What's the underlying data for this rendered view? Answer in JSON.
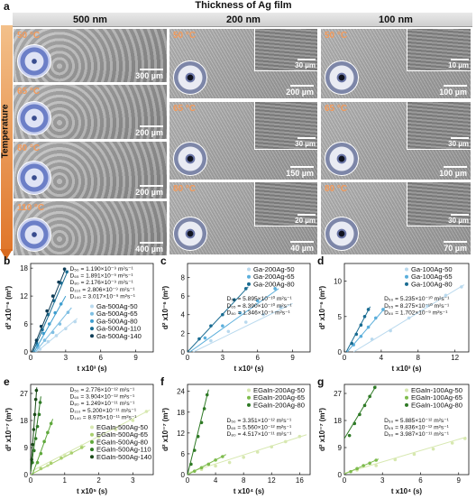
{
  "figure": {
    "panel_a_letter": "a",
    "super_title": "Thickness of Ag film",
    "columns": [
      "500 nm",
      "200 nm",
      "100 nm"
    ],
    "temperature_label": "Temperature",
    "tiles": [
      {
        "col": 0,
        "row": 0,
        "temp": "50 °C",
        "scale": "300 µm",
        "inset": false,
        "droplet": true
      },
      {
        "col": 0,
        "row": 1,
        "temp": "65 °C",
        "scale": "200 µm",
        "inset": false,
        "droplet": true
      },
      {
        "col": 0,
        "row": 2,
        "temp": "80 °C",
        "scale": "200 µm",
        "inset": false,
        "droplet": true
      },
      {
        "col": 0,
        "row": 3,
        "temp": "110 °C",
        "scale": "400 µm",
        "inset": false,
        "droplet": true
      },
      {
        "col": 1,
        "row": 0,
        "temp": "50 °C",
        "scale": "200 µm",
        "inset": "30 µm",
        "droplet": true
      },
      {
        "col": 1,
        "row": 1,
        "temp": "65 °C",
        "scale": "150 µm",
        "inset": "30 µm",
        "droplet": true
      },
      {
        "col": 1,
        "row": 2,
        "temp": "80 °C",
        "scale": "40 µm",
        "inset": "20 µm",
        "droplet": true
      },
      {
        "col": 2,
        "row": 0,
        "temp": "50 °C",
        "scale": "100 µm",
        "inset": "10 µm",
        "droplet": true
      },
      {
        "col": 2,
        "row": 1,
        "temp": "65 °C",
        "scale": "100 µm",
        "inset": "30 µm",
        "droplet": true
      },
      {
        "col": 2,
        "row": 2,
        "temp": "80 °C",
        "scale": "70 µm",
        "inset": "30 µm",
        "droplet": true
      }
    ]
  },
  "chart_data": [
    {
      "panel": "b",
      "type": "scatter",
      "xlabel": "t x10³ (s)",
      "ylabel": "d² x10⁻⁶ (m²)",
      "xlim": [
        0,
        10.5
      ],
      "ylim": [
        0,
        19
      ],
      "xticks": [
        0,
        3,
        6,
        9
      ],
      "yticks": [
        0,
        6,
        12,
        18
      ],
      "equations": [
        "D₅₀ = 1.190×10⁻⁹ m²s⁻¹",
        "D₆₅ = 1.891×10⁻⁹ m²s⁻¹",
        "D₈₀ = 2.176×10⁻⁹ m²s⁻¹",
        "D₁₁₀ = 2.806×10⁻⁹ m²s⁻¹",
        "D₁₄₀ = 3.017×10⁻⁹ m²s⁻¹"
      ],
      "series": [
        {
          "name": "Ga-500Ag-50",
          "color": "#b9d9ee",
          "points": [
            [
              0.8,
              0.6
            ],
            [
              1.5,
              2.2
            ],
            [
              2.2,
              3.5
            ],
            [
              3,
              5
            ],
            [
              3.8,
              6.5
            ]
          ],
          "line": [
            [
              0.5,
              0
            ],
            [
              4,
              7.2
            ]
          ]
        },
        {
          "name": "Ga-500Ag-65",
          "color": "#7fbfe3",
          "points": [
            [
              0.6,
              1
            ],
            [
              1.2,
              2.5
            ],
            [
              1.9,
              4.2
            ],
            [
              2.5,
              6
            ],
            [
              3.2,
              8.5
            ]
          ],
          "line": [
            [
              0.4,
              0
            ],
            [
              3.5,
              9.5
            ]
          ]
        },
        {
          "name": "Ga-500Ag-80",
          "color": "#3e9ecf",
          "points": [
            [
              0.6,
              1.5
            ],
            [
              1.1,
              4
            ],
            [
              1.6,
              6
            ],
            [
              2.1,
              8.4
            ],
            [
              2.6,
              10.3
            ]
          ],
          "line": [
            [
              0.3,
              0
            ],
            [
              3,
              12
            ]
          ]
        },
        {
          "name": "Ga-500Ag-110",
          "color": "#1a6c92",
          "points": [
            [
              0.5,
              2
            ],
            [
              1,
              4.8
            ],
            [
              1.5,
              8
            ],
            [
              2,
              11
            ],
            [
              2.6,
              14.8
            ],
            [
              3.1,
              17.2
            ]
          ],
          "line": [
            [
              0.2,
              0
            ],
            [
              3.2,
              17.5
            ]
          ]
        },
        {
          "name": "Ga-500Ag-140",
          "color": "#0e3d57",
          "points": [
            [
              0.5,
              2.5
            ],
            [
              0.9,
              5.5
            ],
            [
              1.4,
              8.8
            ],
            [
              1.9,
              12
            ],
            [
              2.4,
              15
            ],
            [
              2.9,
              17.8
            ]
          ],
          "line": [
            [
              0.1,
              0
            ],
            [
              3,
              18
            ]
          ]
        }
      ]
    },
    {
      "panel": "c",
      "type": "scatter",
      "xlabel": "t x10³ (s)",
      "ylabel": "d² x10⁻⁶ (m²)",
      "xlim": [
        0,
        10.5
      ],
      "ylim": [
        0,
        9.5
      ],
      "xticks": [
        0,
        3,
        6,
        9
      ],
      "yticks": [
        0,
        2,
        4,
        6,
        8
      ],
      "equations": [
        "D₅₀ = 5.895×10⁻¹⁰ m²s⁻¹",
        "D₆₅ = 8.390×10⁻¹⁰ m²s⁻¹",
        "D₈₀ = 1.346×10⁻⁹ m²s⁻¹"
      ],
      "series": [
        {
          "name": "Ga-200Ag-50",
          "color": "#b9d9ee",
          "points": [
            [
              2,
              1.2
            ],
            [
              3.5,
              2.2
            ],
            [
              5,
              3.2
            ],
            [
              6.5,
              4
            ],
            [
              8,
              4.8
            ]
          ],
          "line": [
            [
              0.5,
              0
            ],
            [
              9,
              5.2
            ]
          ]
        },
        {
          "name": "Ga-200Ag-65",
          "color": "#5aaedb",
          "points": [
            [
              1.5,
              1.5
            ],
            [
              3,
              2.8
            ],
            [
              4.5,
              4.2
            ],
            [
              6,
              5.5
            ],
            [
              7.5,
              6.8
            ]
          ],
          "line": [
            [
              0.2,
              0
            ],
            [
              7.8,
              6.8
            ]
          ]
        },
        {
          "name": "Ga-200Ag-80",
          "color": "#1a6c92",
          "points": [
            [
              1,
              1.4
            ],
            [
              2,
              2.8
            ],
            [
              3,
              4
            ],
            [
              4,
              5.6
            ],
            [
              5,
              6.8
            ]
          ],
          "line": [
            [
              0,
              0
            ],
            [
              5.2,
              7
            ]
          ]
        }
      ]
    },
    {
      "panel": "d",
      "type": "scatter",
      "xlabel": "t x10³ (s)",
      "ylabel": "d² x10⁻⁶ (m²)",
      "xlim": [
        0,
        13.5
      ],
      "ylim": [
        0,
        12.5
      ],
      "xticks": [
        0,
        4,
        8,
        12
      ],
      "yticks": [
        0,
        5,
        10
      ],
      "equations": [
        "D₅₀ = 5.235×10⁻¹⁰ m²s⁻¹",
        "D₆₅ = 8.275×10⁻¹⁰ m²s⁻¹",
        "D₈₀ = 1.702×10⁻⁹ m²s⁻¹"
      ],
      "series": [
        {
          "name": "Ga-100Ag-50",
          "color": "#b9d9ee",
          "points": [
            [
              3,
              1.8
            ],
            [
              5,
              3
            ],
            [
              7,
              4.8
            ],
            [
              9,
              6.5
            ],
            [
              11,
              8
            ],
            [
              12.7,
              9.2
            ]
          ],
          "line": [
            [
              1,
              0
            ],
            [
              13,
              9.5
            ]
          ]
        },
        {
          "name": "Ga-100Ag-65",
          "color": "#5aaedb",
          "points": [
            [
              1,
              1
            ],
            [
              1.8,
              2.2
            ],
            [
              2.6,
              3.5
            ],
            [
              3.4,
              4.8
            ],
            [
              4.2,
              6
            ]
          ],
          "line": [
            [
              0.3,
              0
            ],
            [
              4.4,
              6.2
            ]
          ]
        },
        {
          "name": "Ga-100Ag-80",
          "color": "#1a6c92",
          "points": [
            [
              0.8,
              1.2
            ],
            [
              1.3,
              2.5
            ],
            [
              1.8,
              3.8
            ],
            [
              2.2,
              5
            ],
            [
              2.6,
              6
            ]
          ],
          "line": [
            [
              0.2,
              0
            ],
            [
              2.8,
              6.4
            ]
          ]
        }
      ]
    },
    {
      "panel": "e",
      "type": "scatter",
      "xlabel": "t x10⁵ (s)",
      "ylabel": "d² x10⁻⁷ (m²)",
      "xlim": [
        0,
        3.6
      ],
      "ylim": [
        0,
        30
      ],
      "xticks": [
        0,
        1,
        2,
        3
      ],
      "yticks": [
        0,
        9,
        18,
        27
      ],
      "equations": [
        "D₅₀ = 2.776×10⁻¹² m²s⁻¹",
        "D₆₅ = 3.904×10⁻¹² m²s⁻¹",
        "D₈₀ = 1.249×10⁻¹¹ m²s⁻¹",
        "D₁₁₀ = 5.200×10⁻¹¹ m²s⁻¹",
        "D₁₄₀ = 8.975×10⁻¹¹ m²s⁻¹"
      ],
      "series": [
        {
          "name": "EGaIn-500Ag-50",
          "color": "#d7e8b0",
          "points": [
            [
              0.5,
              3
            ],
            [
              1,
              6.5
            ],
            [
              1.5,
              9.5
            ],
            [
              2,
              12.5
            ],
            [
              2.5,
              15
            ],
            [
              3,
              18
            ],
            [
              3.4,
              21
            ]
          ],
          "line": [
            [
              0,
              1
            ],
            [
              3.5,
              21.5
            ]
          ]
        },
        {
          "name": "EGaIn-500Ag-65",
          "color": "#a9d06e",
          "points": [
            [
              0.3,
              2
            ],
            [
              0.6,
              3.8
            ],
            [
              0.9,
              5.5
            ],
            [
              1.2,
              7.2
            ],
            [
              1.5,
              9
            ]
          ],
          "line": [
            [
              0,
              0
            ],
            [
              1.6,
              9.5
            ]
          ]
        },
        {
          "name": "EGaIn-500Ag-80",
          "color": "#5fa83c",
          "points": [
            [
              0.2,
              4
            ],
            [
              0.3,
              7
            ],
            [
              0.4,
              11
            ],
            [
              0.5,
              14
            ],
            [
              0.6,
              17
            ]
          ],
          "line": [
            [
              0.05,
              0
            ],
            [
              0.65,
              18.5
            ]
          ]
        },
        {
          "name": "EGaIn-500Ag-110",
          "color": "#2f7a26",
          "points": [
            [
              0.05,
              4
            ],
            [
              0.1,
              8
            ],
            [
              0.15,
              12
            ],
            [
              0.2,
              16
            ],
            [
              0.25,
              20
            ],
            [
              0.28,
              24
            ]
          ],
          "line": [
            [
              0,
              1
            ],
            [
              0.3,
              26
            ]
          ]
        },
        {
          "name": "EGaIn-500Ag-140",
          "color": "#1a4a18",
          "points": [
            [
              0.03,
              5
            ],
            [
              0.06,
              10
            ],
            [
              0.09,
              15
            ],
            [
              0.12,
              20
            ],
            [
              0.15,
              25
            ],
            [
              0.17,
              28
            ]
          ],
          "line": [
            [
              0,
              1
            ],
            [
              0.18,
              29
            ]
          ]
        }
      ]
    },
    {
      "panel": "f",
      "type": "scatter",
      "xlabel": "t x10⁴ (s)",
      "ylabel": "d² x10⁻⁷ (m²)",
      "xlim": [
        0,
        17.5
      ],
      "ylim": [
        0,
        26
      ],
      "xticks": [
        0,
        4,
        8,
        12,
        16
      ],
      "yticks": [
        0,
        6,
        12,
        18,
        24
      ],
      "equations": [
        "D₅₀ = 3.351×10⁻¹² m²s⁻¹",
        "D₆₅ = 5.560×10⁻¹² m²s⁻¹",
        "D₈₀ = 4.517×10⁻¹¹ m²s⁻¹"
      ],
      "series": [
        {
          "name": "EGaIn-200Ag-50",
          "color": "#d7e8b0",
          "points": [
            [
              2,
              1.5
            ],
            [
              4,
              2.5
            ],
            [
              6,
              3.5
            ],
            [
              8,
              5
            ],
            [
              10,
              6.5
            ],
            [
              12,
              8
            ],
            [
              14,
              9.5
            ],
            [
              16,
              11
            ]
          ],
          "line": [
            [
              0,
              0.5
            ],
            [
              17,
              11.5
            ]
          ]
        },
        {
          "name": "EGaIn-200Ag-65",
          "color": "#7dbb4c",
          "points": [
            [
              1,
              1
            ],
            [
              2,
              2
            ],
            [
              3,
              3
            ],
            [
              4,
              4.2
            ],
            [
              5,
              5.2
            ]
          ],
          "line": [
            [
              0,
              0
            ],
            [
              5.5,
              5.8
            ]
          ]
        },
        {
          "name": "EGaIn-200Ag-80",
          "color": "#2f7a26",
          "points": [
            [
              0.5,
              3
            ],
            [
              1,
              7
            ],
            [
              1.5,
              11
            ],
            [
              2,
              15
            ],
            [
              2.4,
              19
            ],
            [
              2.8,
              23
            ]
          ],
          "line": [
            [
              0,
              0
            ],
            [
              3,
              24.5
            ]
          ]
        }
      ]
    },
    {
      "panel": "g",
      "type": "scatter",
      "xlabel": "t x10⁴ (s)",
      "ylabel": "d² x10⁻⁷ (m²)",
      "xlim": [
        0,
        9.8
      ],
      "ylim": [
        0,
        30
      ],
      "xticks": [
        0,
        3,
        6,
        9
      ],
      "yticks": [
        0,
        9,
        18,
        27
      ],
      "equations": [
        "D₅₀ = 5.885×10⁻¹² m²s⁻¹",
        "D₆₅ = 9.836×10⁻¹² m²s⁻¹",
        "D₈₀ = 3.987×10⁻¹¹ m²s⁻¹"
      ],
      "series": [
        {
          "name": "EGaIn-100Ag-50",
          "color": "#d7e8b0",
          "points": [
            [
              1,
              1.5
            ],
            [
              2.5,
              3
            ],
            [
              4,
              5
            ],
            [
              5.5,
              6.8
            ],
            [
              7,
              8.5
            ],
            [
              8.5,
              10.5
            ],
            [
              9.5,
              12
            ]
          ],
          "line": [
            [
              0,
              0.5
            ],
            [
              9.6,
              12.5
            ]
          ]
        },
        {
          "name": "EGaIn-100Ag-65",
          "color": "#7dbb4c",
          "points": [
            [
              0.5,
              1
            ],
            [
              1,
              2
            ],
            [
              1.5,
              3
            ],
            [
              2,
              3.8
            ],
            [
              2.5,
              4.8
            ]
          ],
          "line": [
            [
              0,
              0.2
            ],
            [
              2.7,
              5.2
            ]
          ]
        },
        {
          "name": "EGaIn-100Ag-80",
          "color": "#2f7a26",
          "points": [
            [
              0.4,
              13
            ],
            [
              0.8,
              17
            ],
            [
              1.2,
              20
            ],
            [
              1.6,
              23
            ],
            [
              2,
              26
            ],
            [
              2.4,
              29
            ]
          ],
          "line": [
            [
              0,
              12
            ],
            [
              2.5,
              29.5
            ]
          ]
        }
      ]
    }
  ]
}
